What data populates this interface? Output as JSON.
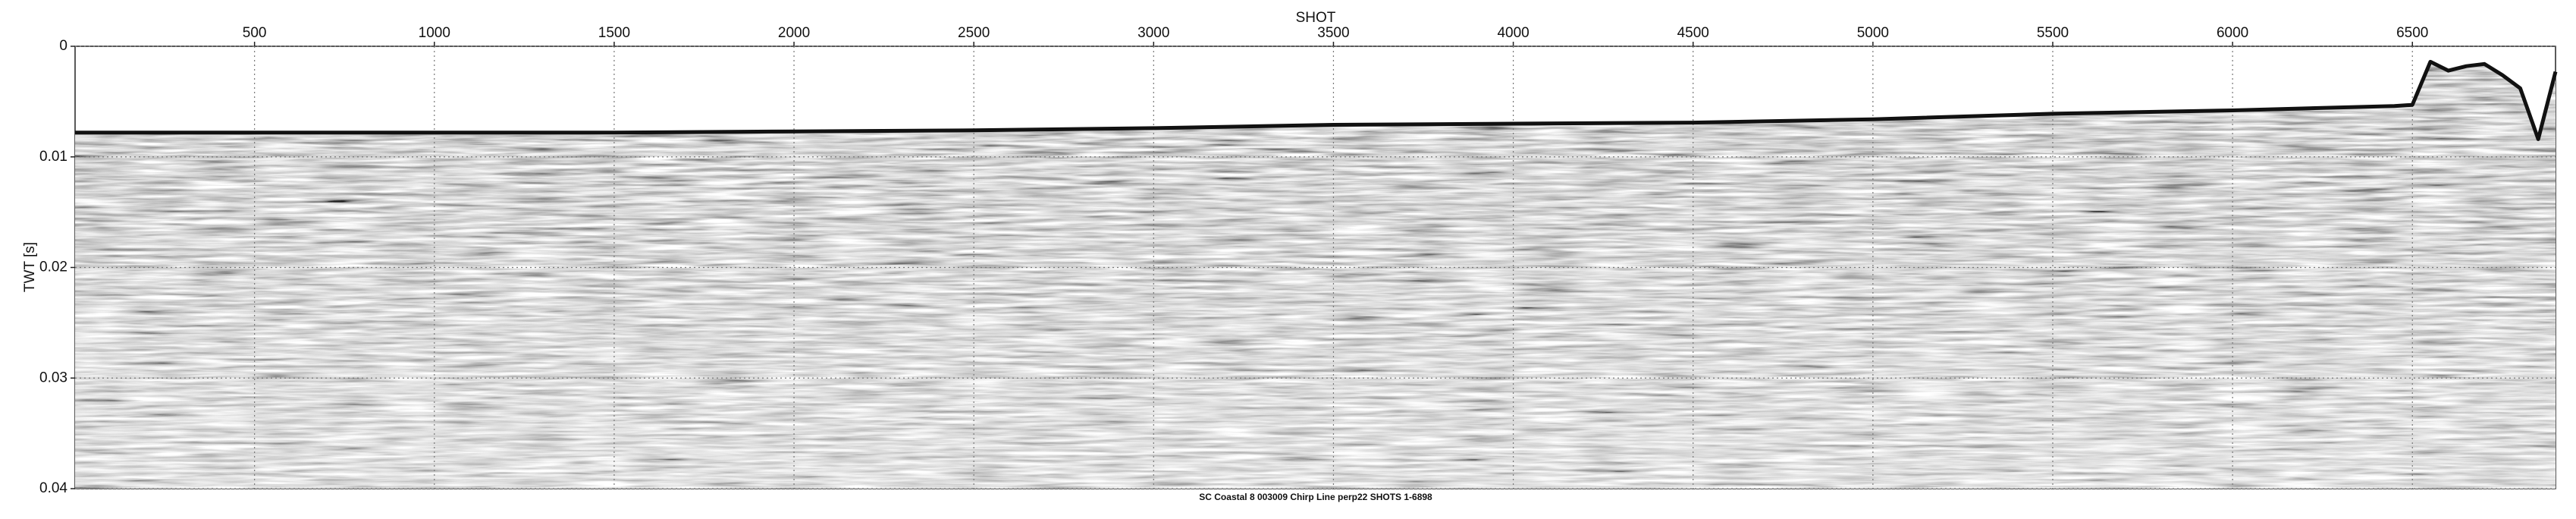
{
  "chart_data": {
    "type": "seismic",
    "xlabel": "SHOT",
    "ylabel": "TWT [s]",
    "caption": "SC Coastal 8 003009 Chirp Line perp22 SHOTS 1-6898",
    "xlim": [
      1,
      6898
    ],
    "xticks": [
      500,
      1000,
      1500,
      2000,
      2500,
      3000,
      3500,
      4000,
      4500,
      5000,
      5500,
      6000,
      6500
    ],
    "ylim": [
      0,
      0.04
    ],
    "yticks": [
      0,
      0.01,
      0.02,
      0.03,
      0.04
    ],
    "y_inverted": true,
    "grid": true,
    "x": [
      1,
      500,
      1000,
      1500,
      2000,
      2500,
      3000,
      3500,
      4000,
      4500,
      5000,
      5500,
      6000,
      6450,
      6500,
      6550,
      6600,
      6650,
      6700,
      6750,
      6800,
      6850,
      6898
    ],
    "values": [
      0.0078,
      0.0078,
      0.0078,
      0.0078,
      0.0077,
      0.0076,
      0.0074,
      0.0071,
      0.007,
      0.0069,
      0.0066,
      0.0061,
      0.0058,
      0.0054,
      0.0053,
      0.0014,
      0.0022,
      0.0018,
      0.0016,
      0.0026,
      0.0038,
      0.0084,
      0.0023
    ],
    "color": "#111111"
  }
}
